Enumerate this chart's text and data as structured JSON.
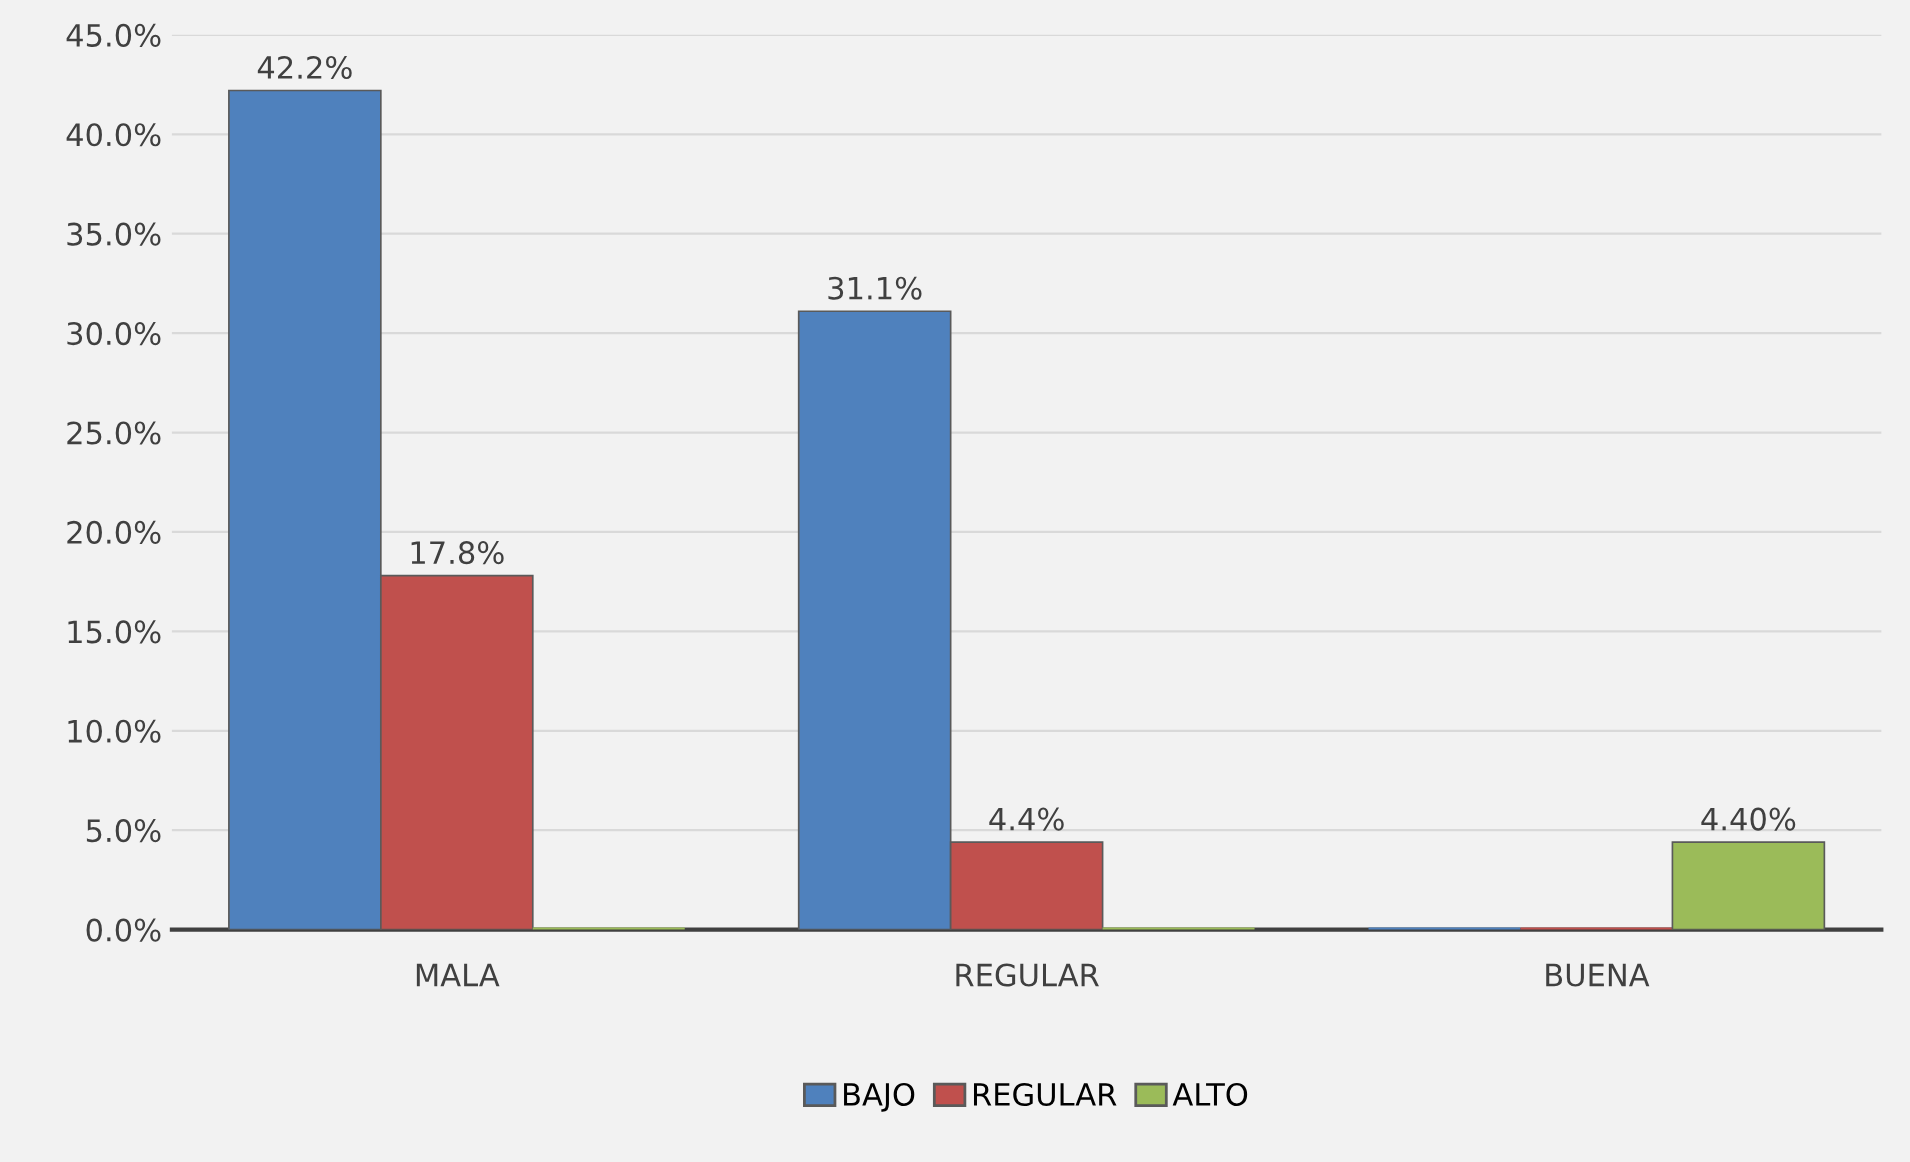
{
  "chart_data": {
    "type": "bar",
    "categories": [
      "MALA",
      "REGULAR",
      "BUENA"
    ],
    "series": [
      {
        "name": "BAJO",
        "color": "#4f81bd",
        "values": [
          42.2,
          31.1,
          0
        ],
        "value_labels": [
          "42.2%",
          "31.1%",
          null
        ]
      },
      {
        "name": "REGULAR",
        "color": "#c0504d",
        "values": [
          17.8,
          4.4,
          0
        ],
        "value_labels": [
          "17.8%",
          "4.4%",
          null
        ]
      },
      {
        "name": "ALTO",
        "color": "#9bbb59",
        "values": [
          0,
          0,
          4.4
        ],
        "value_labels": [
          null,
          null,
          "4.40%"
        ]
      }
    ],
    "ylim": [
      0,
      45
    ],
    "yticks": [
      {
        "value": 0,
        "label": "0.0%"
      },
      {
        "value": 5,
        "label": "5.0%"
      },
      {
        "value": 10,
        "label": "10.0%"
      },
      {
        "value": 15,
        "label": "15.0%"
      },
      {
        "value": 20,
        "label": "20.0%"
      },
      {
        "value": 25,
        "label": "25.0%"
      },
      {
        "value": 30,
        "label": "30.0%"
      },
      {
        "value": 35,
        "label": "35.0%"
      },
      {
        "value": 40,
        "label": "40.0%"
      },
      {
        "value": 45,
        "label": "45.0%"
      }
    ],
    "grid": "y",
    "legend": "bottom"
  }
}
